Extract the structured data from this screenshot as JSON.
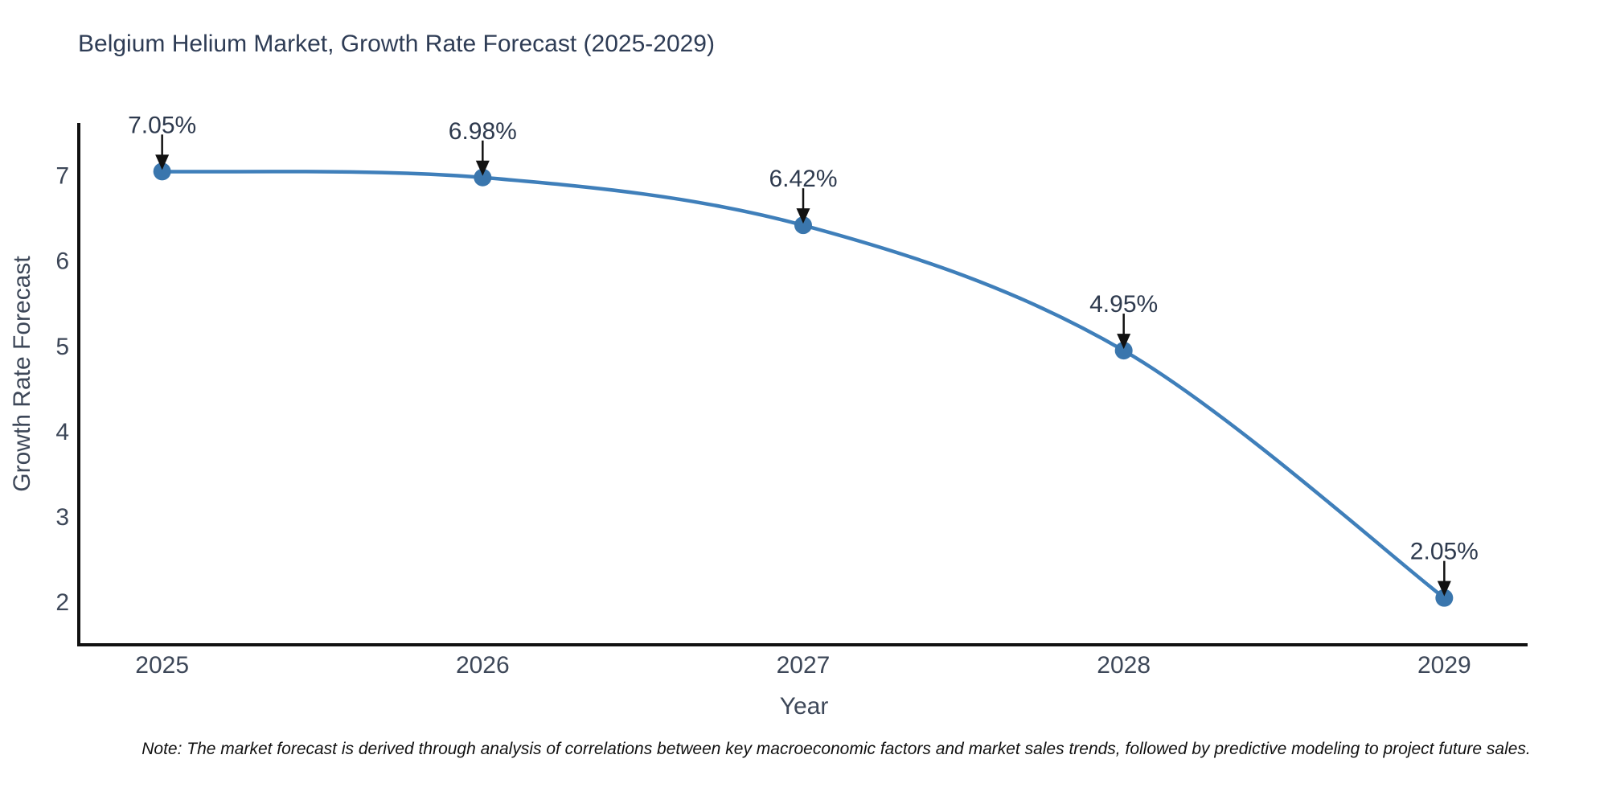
{
  "title": "Belgium Helium Market, Growth Rate Forecast (2025-2029)",
  "note": "Note: The market forecast is derived through analysis of correlations between key macroeconomic factors and market sales trends, followed by predictive modeling to project future sales.",
  "chart_data": {
    "type": "line",
    "title": "Belgium Helium Market, Growth Rate Forecast (2025-2029)",
    "xlabel": "Year",
    "ylabel": "Growth Rate Forecast",
    "x": [
      2025,
      2026,
      2027,
      2028,
      2029
    ],
    "values": [
      7.05,
      6.98,
      6.42,
      4.95,
      2.05
    ],
    "point_labels": [
      "7.05%",
      "6.98%",
      "6.42%",
      "4.95%",
      "2.05%"
    ],
    "xtick_labels": [
      "2025",
      "2026",
      "2027",
      "2028",
      "2029"
    ],
    "yticks": [
      2,
      3,
      4,
      5,
      6,
      7
    ],
    "xlim": [
      2024.74,
      2029.26
    ],
    "ylim": [
      1.5,
      7.6
    ],
    "grid": false,
    "legend": false,
    "line_color": "#3f7fba",
    "marker_color": "#3a76ad",
    "axis_color": "#111111",
    "arrow_color": "#111111"
  }
}
